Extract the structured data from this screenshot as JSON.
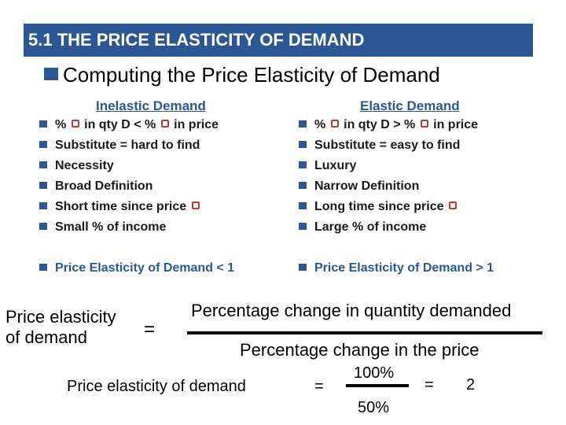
{
  "title": "5.1  THE PRICE ELASTICITY OF DEMAND",
  "subtitle": "Computing the Price Elasticity of Demand",
  "inelastic": {
    "heading": "Inelastic Demand",
    "items": [
      {
        "pre": "% ",
        "post": " in qty D < % ",
        "post2": " in price"
      },
      "Substitute = hard to find",
      "Necessity",
      "Broad Definition",
      "Short time since price ",
      "Small % of income"
    ],
    "summary": "Price Elasticity of Demand < 1"
  },
  "elastic": {
    "heading": "Elastic Demand",
    "items": [
      {
        "pre": "% ",
        "post": " in qty D > % ",
        "post2": " in price"
      },
      "Substitute = easy to find",
      "Luxury",
      "Narrow Definition",
      "Long time since price ",
      "Large % of income"
    ],
    "summary": "Price Elasticity of Demand > 1"
  },
  "formula": {
    "left_line1": "Price elasticity",
    "left_line2": "of demand",
    "equals": "=",
    "numerator": "Percentage change in quantity demanded",
    "denominator": "Percentage change in the price"
  },
  "example": {
    "label": "Price elasticity of demand",
    "equals": "=",
    "numerator": "100%",
    "denominator": "50%",
    "equals2": "=",
    "result": "2"
  },
  "colors": {
    "accent": "#2b5797",
    "symbol": "#c0392b"
  }
}
